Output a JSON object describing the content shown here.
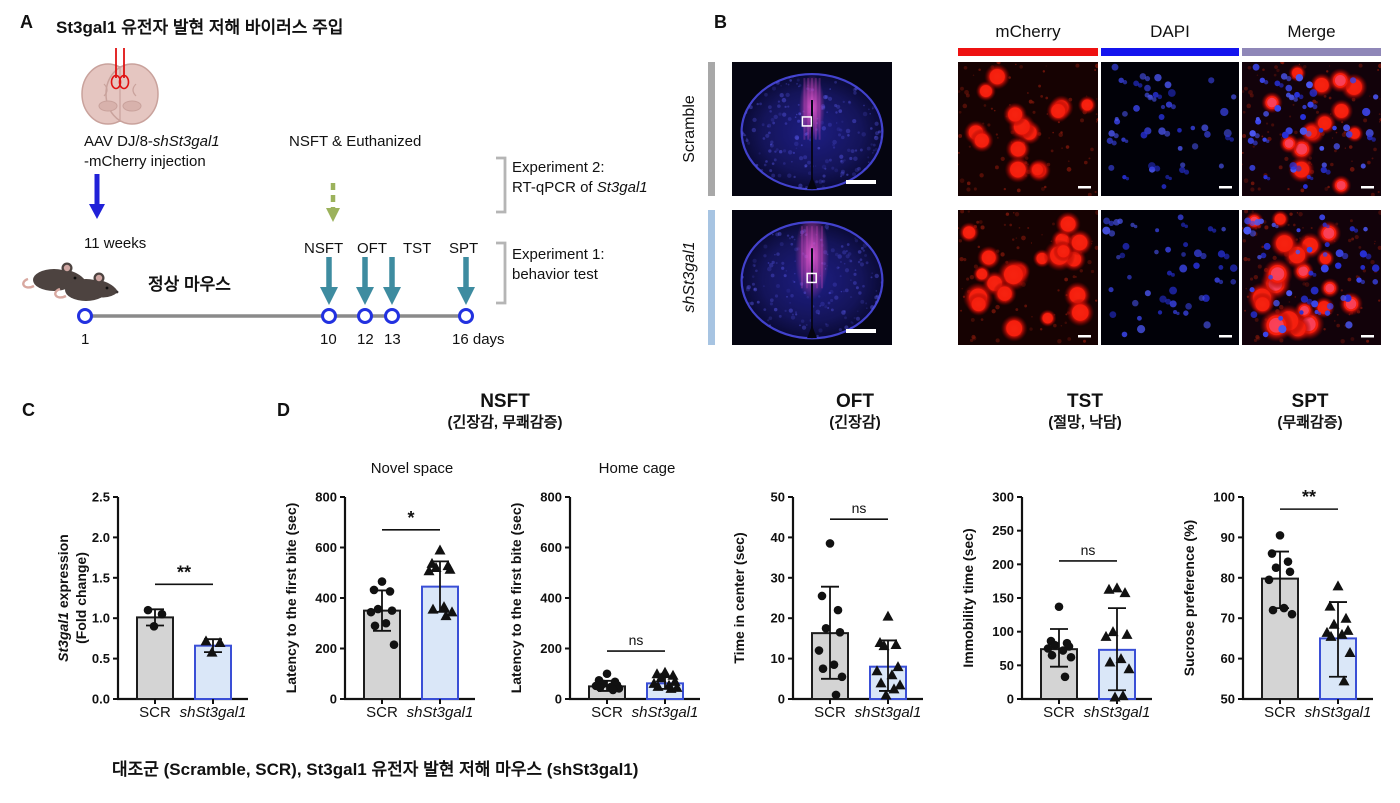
{
  "panel_a": {
    "label": "A",
    "title": "St3gal1 유전자 발현 저해 바이러스 주입",
    "injection_line1_prefix": "AAV DJ/8-",
    "injection_line1_italic": "shSt3gal1",
    "injection_line2": "-mCherry injection",
    "nsft_euthanized": "NSFT & Euthanized",
    "weeks": "11 weeks",
    "normal_mouse": "정상 마우스",
    "tests": [
      "NSFT",
      "OFT",
      "TST",
      "SPT"
    ],
    "timeline_days": [
      "1",
      "10",
      "12",
      "13",
      "16 days"
    ],
    "experiment2_line1": "Experiment 2:",
    "experiment2_line2_prefix": "RT-qPCR of ",
    "experiment2_line2_italic": "St3gal1",
    "experiment1_line1": "Experiment 1:",
    "experiment1_line2": "behavior test"
  },
  "panel_b": {
    "label": "B",
    "columns": [
      "mCherry",
      "DAPI",
      "Merge"
    ],
    "column_bar_colors": [
      "#ee1111",
      "#1414ee",
      "#8f87b8"
    ],
    "rows": [
      {
        "label": "Scramble",
        "italic": false,
        "bar_color": "#a8a8a8"
      },
      {
        "label": "shSt3gal1",
        "italic": true,
        "bar_color": "#a7c4e2"
      }
    ]
  },
  "panel_c": {
    "label": "C"
  },
  "panel_d": {
    "label": "D",
    "group_titles": [
      {
        "title": "NSFT",
        "subtitle": "(긴장감, 무쾌감증)"
      },
      {
        "title": "OFT",
        "subtitle": "(긴장감)"
      },
      {
        "title": "TST",
        "subtitle": "(절망, 낙담)"
      },
      {
        "title": "SPT",
        "subtitle": "(무쾌감증)"
      }
    ]
  },
  "caption": "대조군 (Scramble, SCR), St3gal1 유전자 발현 저해 마우스 (shSt3gal1)",
  "colors": {
    "bar_gray_fill": "#d4d4d4",
    "bar_gray_stroke": "#1c1c1c",
    "bar_blue_fill": "#dae7f8",
    "bar_blue_stroke": "#3a4fd6",
    "teal_arrow": "#3e8ca0",
    "blue_arrow": "#2021d8",
    "green_arrow": "#9cb25c",
    "timeline_line": "#8a8a8a",
    "timeline_node": "#2231e0",
    "mcherry_bar": "#ee1111",
    "dapi_bar": "#1414ee",
    "merge_bar": "#8f87b8",
    "scramble_row_bar": "#a8a8a8",
    "sh_row_bar": "#a7c4e2"
  },
  "chart_data": [
    {
      "id": "st3gal1-expression",
      "type": "bar",
      "ylabel_lines": [
        [
          {
            "t": "St3gal1",
            "i": true
          },
          {
            "t": " expression"
          }
        ],
        [
          {
            "t": "(Fold change)"
          }
        ]
      ],
      "ylim": [
        0,
        2.5
      ],
      "yticks": [
        "0.0",
        "0.5",
        "1.0",
        "1.5",
        "2.0",
        "2.5"
      ],
      "sig": {
        "label": "**",
        "y": 1.42
      },
      "groups": [
        {
          "label": "SCR",
          "italic": false,
          "marker": "circle",
          "style": "gray",
          "bar": 1.01,
          "err": [
            0.91,
            1.11
          ],
          "points": [
            1.1,
            1.05,
            0.9
          ]
        },
        {
          "label": "shSt3gal1",
          "italic": true,
          "marker": "triangle",
          "style": "blue",
          "bar": 0.66,
          "err": [
            0.58,
            0.74
          ],
          "points": [
            0.72,
            0.7,
            0.58
          ]
        }
      ]
    },
    {
      "id": "nsft-novel-space",
      "type": "bar",
      "subtitle": "Novel space",
      "ylabel_lines": [
        [
          {
            "t": "Latency to the first bite (sec)"
          }
        ]
      ],
      "ylim": [
        0,
        800
      ],
      "yticks": [
        "0",
        "200",
        "400",
        "600",
        "800"
      ],
      "sig": {
        "label": "*",
        "y": 670
      },
      "groups": [
        {
          "label": "SCR",
          "italic": false,
          "marker": "circle",
          "style": "gray",
          "bar": 350,
          "err": [
            270,
            430
          ],
          "points": [
            465,
            432,
            426,
            356,
            350,
            344,
            300,
            290,
            215
          ]
        },
        {
          "label": "shSt3gal1",
          "italic": true,
          "marker": "triangle",
          "style": "blue",
          "bar": 445,
          "err": [
            345,
            545
          ],
          "points": [
            590,
            537,
            528,
            521,
            514,
            508,
            366,
            356,
            345,
            330
          ]
        }
      ]
    },
    {
      "id": "nsft-home-cage",
      "type": "bar",
      "subtitle": "Home cage",
      "ylabel_lines": [
        [
          {
            "t": "Latency to the first bite (sec)"
          }
        ]
      ],
      "ylim": [
        0,
        800
      ],
      "yticks": [
        "0",
        "200",
        "400",
        "600",
        "800"
      ],
      "sig": {
        "label": "ns",
        "y": 190
      },
      "groups": [
        {
          "label": "SCR",
          "italic": false,
          "marker": "circle",
          "style": "gray",
          "bar": 50,
          "err": [
            32,
            72
          ],
          "points": [
            100,
            74,
            68,
            60,
            55,
            52,
            48,
            45,
            42,
            36
          ]
        },
        {
          "label": "shSt3gal1",
          "italic": true,
          "marker": "triangle",
          "style": "blue",
          "bar": 62,
          "err": [
            40,
            86
          ],
          "points": [
            106,
            100,
            94,
            84,
            70,
            62,
            55,
            50,
            46,
            42
          ]
        }
      ]
    },
    {
      "id": "oft-time-in-center",
      "type": "bar",
      "ylabel_lines": [
        [
          {
            "t": "Time in center (sec)"
          }
        ]
      ],
      "ylim": [
        0,
        50
      ],
      "yticks": [
        "0",
        "10",
        "20",
        "30",
        "40",
        "50"
      ],
      "sig": {
        "label": "ns",
        "y": 44.5
      },
      "groups": [
        {
          "label": "SCR",
          "italic": false,
          "marker": "circle",
          "style": "gray",
          "bar": 16.3,
          "err": [
            5,
            27.8
          ],
          "points": [
            38.5,
            25.5,
            22,
            17.5,
            16.5,
            12,
            8.5,
            7.5,
            5.5,
            1
          ]
        },
        {
          "label": "shSt3gal1",
          "italic": true,
          "marker": "triangle",
          "style": "blue",
          "bar": 8,
          "err": [
            2,
            14.5
          ],
          "points": [
            20.5,
            14,
            13.5,
            13.2,
            8,
            7,
            6,
            4,
            3.5,
            2.5,
            1
          ]
        }
      ]
    },
    {
      "id": "tst-immobility",
      "type": "bar",
      "ylabel_lines": [
        [
          {
            "t": "Immobility time (sec)"
          }
        ]
      ],
      "ylim": [
        0,
        300
      ],
      "yticks": [
        "0",
        "50",
        "100",
        "150",
        "200",
        "250",
        "300"
      ],
      "sig": {
        "label": "ns",
        "y": 205
      },
      "groups": [
        {
          "label": "SCR",
          "italic": false,
          "marker": "circle",
          "style": "gray",
          "bar": 74,
          "err": [
            48,
            104
          ],
          "points": [
            137,
            86,
            83,
            80,
            78,
            75,
            72,
            65,
            62,
            33
          ]
        },
        {
          "label": "shSt3gal1",
          "italic": true,
          "marker": "triangle",
          "style": "blue",
          "bar": 73,
          "err": [
            13,
            135
          ],
          "points": [
            165,
            163,
            158,
            100,
            96,
            93,
            60,
            55,
            45,
            5,
            3
          ]
        }
      ]
    },
    {
      "id": "spt-sucrose-preference",
      "type": "bar",
      "ylabel_lines": [
        [
          {
            "t": "Sucrose preference (%)"
          }
        ]
      ],
      "ylim": [
        50,
        100
      ],
      "yticks": [
        "50",
        "60",
        "70",
        "80",
        "90",
        "100"
      ],
      "sig": {
        "label": "**",
        "y": 97
      },
      "groups": [
        {
          "label": "SCR",
          "italic": false,
          "marker": "circle",
          "style": "gray",
          "bar": 79.8,
          "err": [
            72.5,
            86.5
          ],
          "points": [
            90.5,
            86,
            84,
            82.5,
            81.5,
            79.5,
            72.5,
            72,
            71
          ]
        },
        {
          "label": "shSt3gal1",
          "italic": true,
          "marker": "triangle",
          "style": "blue",
          "bar": 65,
          "err": [
            55.5,
            74
          ],
          "points": [
            78,
            73,
            70,
            68.5,
            67,
            66.5,
            66,
            65.5,
            61.5,
            54.5
          ]
        }
      ]
    }
  ]
}
